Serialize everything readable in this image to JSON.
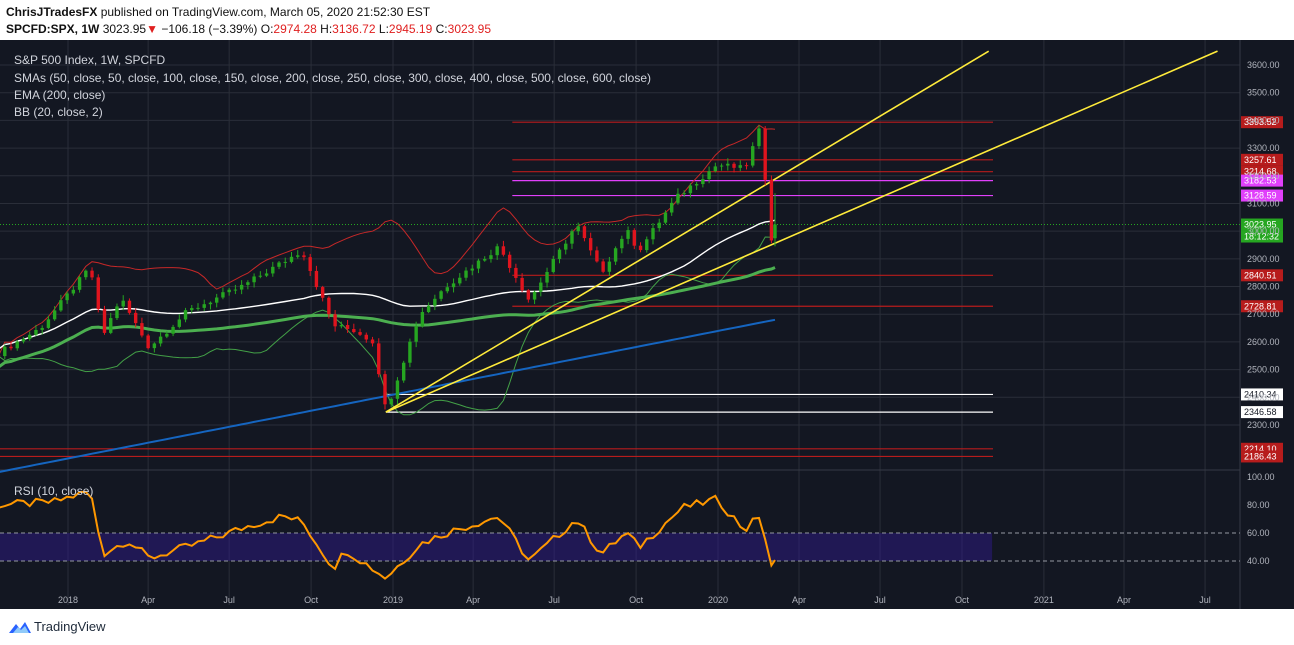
{
  "header": {
    "author": "ChrisJTradesFX",
    "published": " published on TradingView.com, March 05, 2020 21:52:30 EST",
    "symbol": "SPCFD:SPX, 1W",
    "last": "3023.95",
    "change": "−106.18 (−3.39%)",
    "o_label": "O:",
    "o": "2974.28",
    "h_label": "H:",
    "h": "3136.72",
    "l_label": "L:",
    "l": "2945.19",
    "c_label": "C:",
    "c": "3023.95"
  },
  "legend": {
    "title": "S&P 500 Index, 1W, SPCFD",
    "smas": "SMAs (50, close, 50, close, 100, close, 150, close, 200, close, 250, close, 300, close, 400, close, 500, close, 600, close)",
    "ema": "EMA (200, close)",
    "bb": "BB (20, close, 2)",
    "rsi": "RSI (10, close)"
  },
  "footer": {
    "brand": "TradingView"
  },
  "colors": {
    "background": "#131722",
    "grid": "#2a2e39",
    "up": "#26a621",
    "down": "#e0141e",
    "sma50": "#ffffff",
    "sma100": "#4caf50",
    "ema200": "#1565c0",
    "bb": "#c62828",
    "bb_lower": "#43a047",
    "trend": "#ffeb3b",
    "rsi": "#ff9800",
    "rsi_band": "#311b92"
  },
  "chart_data": {
    "type": "candlestick",
    "title": "S&P 500 Index, 1W, SPCFD",
    "y_axis": {
      "ticks": [
        2300,
        2400,
        2500,
        2600,
        2700,
        2800,
        2900,
        3000,
        3100,
        3200,
        3300,
        3400,
        3500,
        3600
      ],
      "tick_labels": [
        "2300.00",
        "2400.00",
        "2500.00",
        "2600.00",
        "2700.00",
        "2800.00",
        "2900.00",
        "3000.00",
        "3100.00",
        "3200.00",
        "3300.00",
        "3400.00",
        "3500.00",
        "3600.00"
      ]
    },
    "x_axis": {
      "labels": [
        "2018",
        "Apr",
        "Jul",
        "Oct",
        "2019",
        "Apr",
        "Jul",
        "Oct",
        "2020",
        "Apr",
        "Jul",
        "Oct",
        "2021",
        "Apr",
        "Jul"
      ],
      "dates": [
        "2018-01",
        "2018-04",
        "2018-07",
        "2018-10",
        "2019-01",
        "2019-04",
        "2019-07",
        "2019-10",
        "2020-01",
        "2020-04",
        "2020-07",
        "2020-10",
        "2021-01",
        "2021-04",
        "2021-07"
      ]
    },
    "ohlc_keyframes": [
      {
        "date": "2017-10-15",
        "close": 2560
      },
      {
        "date": "2017-12-01",
        "close": 2650
      },
      {
        "date": "2018-01-26",
        "close": 2870
      },
      {
        "date": "2018-02-09",
        "close": 2620
      },
      {
        "date": "2018-03-01",
        "close": 2760
      },
      {
        "date": "2018-04-02",
        "close": 2580
      },
      {
        "date": "2018-05-15",
        "close": 2710
      },
      {
        "date": "2018-07-15",
        "close": 2800
      },
      {
        "date": "2018-09-21",
        "close": 2930
      },
      {
        "date": "2018-10-26",
        "close": 2660
      },
      {
        "date": "2018-11-20",
        "close": 2640
      },
      {
        "date": "2018-12-10",
        "close": 2600
      },
      {
        "date": "2018-12-24",
        "close": 2350
      },
      {
        "date": "2019-01-31",
        "close": 2700
      },
      {
        "date": "2019-03-01",
        "close": 2800
      },
      {
        "date": "2019-04-30",
        "close": 2945
      },
      {
        "date": "2019-06-03",
        "close": 2750
      },
      {
        "date": "2019-07-26",
        "close": 3025
      },
      {
        "date": "2019-08-23",
        "close": 2850
      },
      {
        "date": "2019-09-20",
        "close": 3005
      },
      {
        "date": "2019-10-04",
        "close": 2930
      },
      {
        "date": "2019-11-15",
        "close": 3120
      },
      {
        "date": "2019-12-31",
        "close": 3240
      },
      {
        "date": "2020-01-31",
        "close": 3225
      },
      {
        "date": "2020-02-19",
        "close": 3386
      },
      {
        "date": "2020-02-28",
        "close": 2954
      },
      {
        "date": "2020-03-05",
        "close": 3023.95
      }
    ],
    "last_candle": {
      "date": "2020-03-05",
      "open": 2974.28,
      "high": 3136.72,
      "low": 2945.19,
      "close": 3023.95
    },
    "horizontal_levels": [
      {
        "value": 3393.52,
        "label": "3393.52",
        "color": "#b71c1c"
      },
      {
        "value": 3257.61,
        "label": "3257.61",
        "color": "#b71c1c"
      },
      {
        "value": 3214.68,
        "label": "3214.68",
        "color": "#b71c1c"
      },
      {
        "value": 3182.53,
        "label": "3182.53",
        "color": "#e040fb"
      },
      {
        "value": 3128.59,
        "label": "3128.59",
        "color": "#e040fb"
      },
      {
        "value": 3023.95,
        "label": "3023.95",
        "color": "#26a621"
      },
      {
        "value": 2840.51,
        "label": "2840.51",
        "color": "#b71c1c"
      },
      {
        "value": 2728.81,
        "label": "2728.81",
        "color": "#b71c1c"
      },
      {
        "value": 2410.34,
        "label": "2410.34",
        "color": "#ffffff"
      },
      {
        "value": 2346.58,
        "label": "2346.58",
        "color": "#ffffff"
      },
      {
        "value": 2214.1,
        "label": "2214.10",
        "color": "#b71c1c"
      },
      {
        "value": 2186.43,
        "label": "2186.43",
        "color": "#b71c1c"
      }
    ],
    "countdown_label": "18:12:32",
    "trendlines": [
      {
        "from": {
          "date": "2018-12-24",
          "value": 2346.58
        },
        "to": {
          "date": "2020-10-31",
          "value": 3650
        }
      },
      {
        "from": {
          "date": "2018-12-24",
          "value": 2346.58
        },
        "to": {
          "date": "2021-07-15",
          "value": 3650
        }
      }
    ],
    "rsi": {
      "name": "RSI (10, close)",
      "ticks": [
        40,
        60,
        80,
        100
      ],
      "tick_labels": [
        "40.00",
        "60.00",
        "80.00",
        "100.00"
      ],
      "band": [
        40,
        60
      ],
      "keyframes": [
        {
          "date": "2017-10-15",
          "value": 80
        },
        {
          "date": "2017-12-15",
          "value": 82
        },
        {
          "date": "2018-01-26",
          "value": 90
        },
        {
          "date": "2018-02-09",
          "value": 45
        },
        {
          "date": "2018-03-09",
          "value": 55
        },
        {
          "date": "2018-04-02",
          "value": 42
        },
        {
          "date": "2018-05-25",
          "value": 52
        },
        {
          "date": "2018-07-27",
          "value": 66
        },
        {
          "date": "2018-08-31",
          "value": 72
        },
        {
          "date": "2018-09-21",
          "value": 68
        },
        {
          "date": "2018-10-26",
          "value": 35
        },
        {
          "date": "2018-11-09",
          "value": 48
        },
        {
          "date": "2018-12-24",
          "value": 28
        },
        {
          "date": "2019-01-31",
          "value": 52
        },
        {
          "date": "2019-03-01",
          "value": 60
        },
        {
          "date": "2019-04-30",
          "value": 72
        },
        {
          "date": "2019-06-03",
          "value": 40
        },
        {
          "date": "2019-07-26",
          "value": 70
        },
        {
          "date": "2019-08-23",
          "value": 45
        },
        {
          "date": "2019-09-20",
          "value": 60
        },
        {
          "date": "2019-10-04",
          "value": 50
        },
        {
          "date": "2019-11-22",
          "value": 78
        },
        {
          "date": "2019-12-31",
          "value": 84
        },
        {
          "date": "2020-01-31",
          "value": 62
        },
        {
          "date": "2020-02-19",
          "value": 74
        },
        {
          "date": "2020-02-28",
          "value": 33
        },
        {
          "date": "2020-03-05",
          "value": 39
        }
      ]
    }
  }
}
